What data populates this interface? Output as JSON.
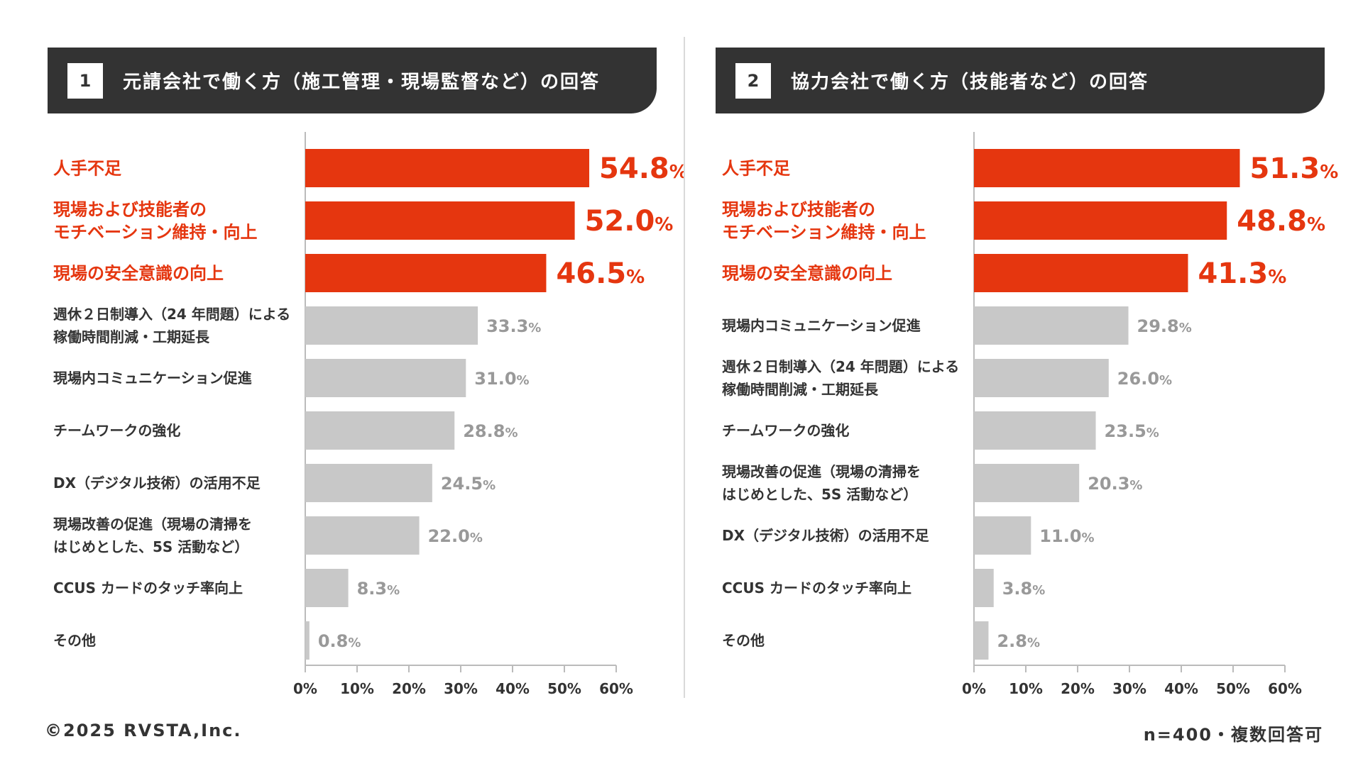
{
  "footer": {
    "copyright": "©2025 RVSTA,Inc.",
    "note": "n=400・複数回答可"
  },
  "colors": {
    "highlight": "#E5360F",
    "normal_bar": "#C8C8C8",
    "normal_text": "#333333",
    "value_gray": "#999999",
    "header_bg": "#333333"
  },
  "panels": [
    {
      "number": "1",
      "title": "元請会社で働く方（施工管理・現場監督など）の回答"
    },
    {
      "number": "2",
      "title": "協力会社で働く方（技能者など）の回答"
    }
  ],
  "chart_data": [
    {
      "type": "bar",
      "orientation": "horizontal",
      "xlim": [
        0,
        60
      ],
      "ticks": [
        "0%",
        "10%",
        "20%",
        "30%",
        "40%",
        "50%",
        "60%"
      ],
      "value_suffix": "%",
      "highlight_count": 3,
      "categories": [
        "人手不足",
        "現場および技能者の\nモチベーション維持・向上",
        "現場の安全意識の向上",
        "週休２日制導入（24 年問題）による\n稼働時間削減・工期延長",
        "現場内コミュニケーション促進",
        "チームワークの強化",
        "DX（デジタル技術）の活用不足",
        "現場改善の促進（現場の清掃を\nはじめとした、5S 活動など）",
        "CCUS カードのタッチ率向上",
        "その他"
      ],
      "values": [
        54.8,
        52.0,
        46.5,
        33.3,
        31.0,
        28.8,
        24.5,
        22.0,
        8.3,
        0.8
      ],
      "value_labels": [
        "54.8",
        "52.0",
        "46.5",
        "33.3",
        "31.0",
        "28.8",
        "24.5",
        "22.0",
        "8.3",
        "0.8"
      ]
    },
    {
      "type": "bar",
      "orientation": "horizontal",
      "xlim": [
        0,
        60
      ],
      "ticks": [
        "0%",
        "10%",
        "20%",
        "30%",
        "40%",
        "50%",
        "60%"
      ],
      "value_suffix": "%",
      "highlight_count": 3,
      "categories": [
        "人手不足",
        "現場および技能者の\nモチベーション維持・向上",
        "現場の安全意識の向上",
        "現場内コミュニケーション促進",
        "週休２日制導入（24 年問題）による\n稼働時間削減・工期延長",
        "チームワークの強化",
        "現場改善の促進（現場の清掃を\nはじめとした、5S 活動など）",
        "DX（デジタル技術）の活用不足",
        "CCUS カードのタッチ率向上",
        "その他"
      ],
      "values": [
        51.3,
        48.8,
        41.3,
        29.8,
        26.0,
        23.5,
        20.3,
        11.0,
        3.8,
        2.8
      ],
      "value_labels": [
        "51.3",
        "48.8",
        "41.3",
        "29.8",
        "26.0",
        "23.5",
        "20.3",
        "11.0",
        "3.8",
        "2.8"
      ]
    }
  ]
}
